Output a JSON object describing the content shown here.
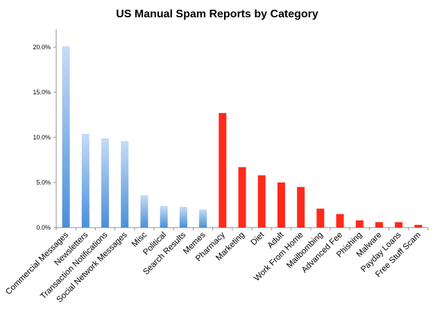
{
  "chart_data": {
    "type": "bar",
    "title": "US Manual Spam Reports by Category",
    "xlabel": "",
    "ylabel": "",
    "ylim": [
      0,
      22
    ],
    "y_ticks": [
      {
        "value": 0,
        "label": "0.0%"
      },
      {
        "value": 5,
        "label": "5.0%"
      },
      {
        "value": 10,
        "label": "10.0%"
      },
      {
        "value": 15,
        "label": "15.0%"
      },
      {
        "value": 20,
        "label": "20.0%"
      }
    ],
    "grid": false,
    "categories": [
      "Commercial Messages",
      "Newsletters",
      "Transaction Notifications",
      "Social Network Messages",
      "Misc",
      "Political",
      "Search Results",
      "Memes",
      "Pharmacy",
      "Marketing",
      "Diet",
      "Adult",
      "Work From Home",
      "Mailbombing",
      "Advanced Fee",
      "Phishing",
      "Malware",
      "Payday Loans",
      "Free Stuff Scam"
    ],
    "values": [
      20.1,
      10.4,
      9.9,
      9.6,
      3.6,
      2.4,
      2.3,
      2.0,
      12.7,
      6.7,
      5.8,
      5.0,
      4.5,
      2.1,
      1.5,
      0.8,
      0.6,
      0.6,
      0.3
    ],
    "groups": [
      "blue",
      "blue",
      "blue",
      "blue",
      "blue",
      "blue",
      "blue",
      "blue",
      "red",
      "red",
      "red",
      "red",
      "red",
      "red",
      "red",
      "red",
      "red",
      "red",
      "red"
    ],
    "colors": {
      "blue_light": "#c6dcf6",
      "blue_dark": "#4a8fd8",
      "red": "#ff2a1a",
      "axis": "#8c8c8c"
    }
  }
}
